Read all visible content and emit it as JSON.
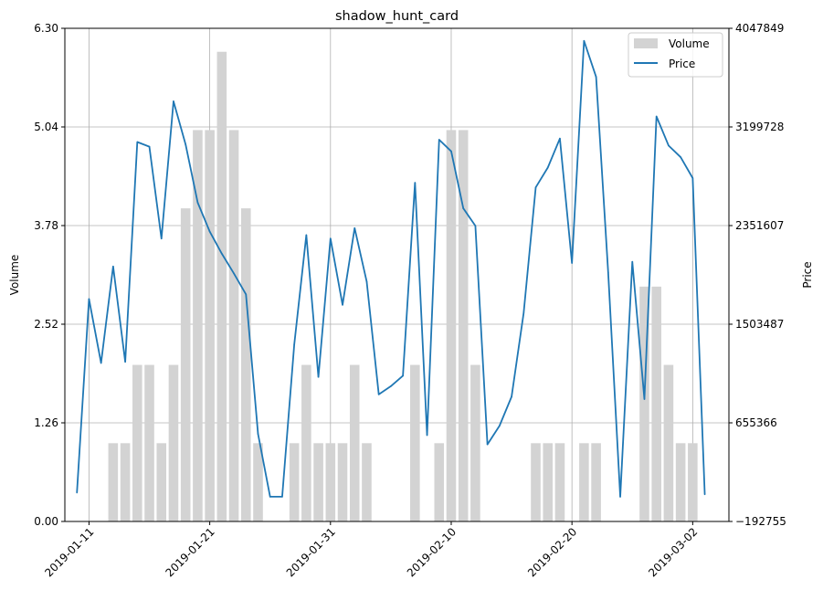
{
  "chart_data": {
    "type": "bar+line",
    "title": "shadow_hunt_card",
    "xlabel": "",
    "ylabel_left": "Volume",
    "ylabel_right": "Price",
    "left_axis": {
      "range": [
        0,
        6.3
      ],
      "ticks": [
        0,
        1.26,
        2.52,
        3.78,
        5.04,
        6.3
      ],
      "tick_labels": [
        "0.00",
        "1.26",
        "2.52",
        "3.78",
        "5.04",
        "6.30"
      ]
    },
    "right_axis": {
      "range": [
        -192755,
        4047849
      ],
      "ticks": [
        -192755,
        655366,
        1503487,
        2351607,
        3199728,
        4047849
      ],
      "tick_labels": [
        "−192755",
        "655366",
        "1503487",
        "2351607",
        "3199728",
        "4047849"
      ]
    },
    "x_axis": {
      "range": [
        "2019-01-09",
        "2019-03-05"
      ],
      "ticks": [
        "2019-01-11",
        "2019-01-21",
        "2019-01-31",
        "2019-02-10",
        "2019-02-20",
        "2019-03-02"
      ],
      "tick_labels": [
        "2019-01-11",
        "2019-01-21",
        "2019-01-31",
        "2019-02-10",
        "2019-02-20",
        "2019-03-02"
      ]
    },
    "grid": true,
    "legend": {
      "placement": "top-right",
      "entries": [
        "Volume",
        "Price"
      ]
    },
    "colors": {
      "volume": "#d3d3d3",
      "price": "#1f77b4",
      "grid": "#b0b0b0"
    },
    "series": [
      {
        "name": "Volume",
        "kind": "bar",
        "axis": "left",
        "points": [
          [
            "2019-01-13",
            1
          ],
          [
            "2019-01-14",
            1
          ],
          [
            "2019-01-15",
            2
          ],
          [
            "2019-01-16",
            2
          ],
          [
            "2019-01-17",
            1
          ],
          [
            "2019-01-18",
            2
          ],
          [
            "2019-01-19",
            4
          ],
          [
            "2019-01-20",
            5
          ],
          [
            "2019-01-21",
            5
          ],
          [
            "2019-01-22",
            6
          ],
          [
            "2019-01-23",
            5
          ],
          [
            "2019-01-24",
            4
          ],
          [
            "2019-01-25",
            1
          ],
          [
            "2019-01-28",
            1
          ],
          [
            "2019-01-29",
            2
          ],
          [
            "2019-01-30",
            1
          ],
          [
            "2019-01-31",
            1
          ],
          [
            "2019-02-01",
            1
          ],
          [
            "2019-02-02",
            2
          ],
          [
            "2019-02-03",
            1
          ],
          [
            "2019-02-07",
            2
          ],
          [
            "2019-02-09",
            1
          ],
          [
            "2019-02-10",
            5
          ],
          [
            "2019-02-11",
            5
          ],
          [
            "2019-02-12",
            2
          ],
          [
            "2019-02-17",
            1
          ],
          [
            "2019-02-18",
            1
          ],
          [
            "2019-02-19",
            1
          ],
          [
            "2019-02-21",
            1
          ],
          [
            "2019-02-22",
            1
          ],
          [
            "2019-02-26",
            3
          ],
          [
            "2019-02-27",
            3
          ],
          [
            "2019-02-28",
            2
          ],
          [
            "2019-03-01",
            1
          ],
          [
            "2019-03-02",
            1
          ]
        ]
      },
      {
        "name": "Price",
        "kind": "line",
        "axis": "right",
        "points": [
          [
            "2019-01-10",
            55000
          ],
          [
            "2019-01-11",
            1720000
          ],
          [
            "2019-01-12",
            1170000
          ],
          [
            "2019-01-13",
            2000000
          ],
          [
            "2019-01-14",
            1180000
          ],
          [
            "2019-01-15",
            3070000
          ],
          [
            "2019-01-16",
            3030000
          ],
          [
            "2019-01-17",
            2240000
          ],
          [
            "2019-01-18",
            3420000
          ],
          [
            "2019-01-19",
            3050000
          ],
          [
            "2019-01-20",
            2550000
          ],
          [
            "2019-01-21",
            2300000
          ],
          [
            "2019-01-22",
            2110000
          ],
          [
            "2019-01-23",
            1940000
          ],
          [
            "2019-01-24",
            1760000
          ],
          [
            "2019-01-25",
            560000
          ],
          [
            "2019-01-26",
            20000
          ],
          [
            "2019-01-27",
            20000
          ],
          [
            "2019-01-28",
            1330000
          ],
          [
            "2019-01-29",
            2270000
          ],
          [
            "2019-01-30",
            1050000
          ],
          [
            "2019-01-31",
            2240000
          ],
          [
            "2019-02-01",
            1670000
          ],
          [
            "2019-02-02",
            2330000
          ],
          [
            "2019-02-03",
            1870000
          ],
          [
            "2019-02-04",
            900000
          ],
          [
            "2019-02-05",
            970000
          ],
          [
            "2019-02-06",
            1060000
          ],
          [
            "2019-02-07",
            2720000
          ],
          [
            "2019-02-08",
            550000
          ],
          [
            "2019-02-09",
            3090000
          ],
          [
            "2019-02-10",
            2990000
          ],
          [
            "2019-02-11",
            2500000
          ],
          [
            "2019-02-12",
            2350000
          ],
          [
            "2019-02-13",
            470000
          ],
          [
            "2019-02-14",
            630000
          ],
          [
            "2019-02-15",
            880000
          ],
          [
            "2019-02-16",
            1600000
          ],
          [
            "2019-02-17",
            2680000
          ],
          [
            "2019-02-18",
            2850000
          ],
          [
            "2019-02-19",
            3100000
          ],
          [
            "2019-02-20",
            2030000
          ],
          [
            "2019-02-21",
            3940000
          ],
          [
            "2019-02-22",
            3630000
          ],
          [
            "2019-02-23",
            1950000
          ],
          [
            "2019-02-24",
            20000
          ],
          [
            "2019-02-25",
            2040000
          ],
          [
            "2019-02-26",
            860000
          ],
          [
            "2019-02-27",
            3290000
          ],
          [
            "2019-02-28",
            3040000
          ],
          [
            "2019-03-01",
            2940000
          ],
          [
            "2019-03-02",
            2760000
          ],
          [
            "2019-03-03",
            40000
          ]
        ]
      }
    ]
  }
}
